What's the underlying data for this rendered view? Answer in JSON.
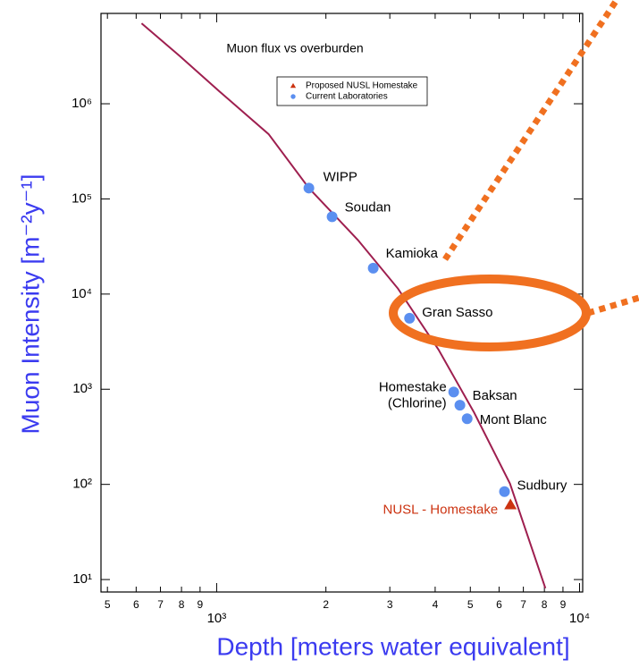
{
  "chart_data": {
    "type": "line",
    "title": "Muon flux vs overburden",
    "x_label": "Depth [meters water equivalent]",
    "y_label": "Muon Intensity [m⁻²y⁻¹]",
    "log_x": true,
    "log_y": true,
    "xlim": [
      480,
      10200
    ],
    "ylim": [
      7.4,
      8900000
    ],
    "xticks": [
      {
        "value": 500,
        "label": "5"
      },
      {
        "value": 600,
        "label": "6"
      },
      {
        "value": 700,
        "label": "7"
      },
      {
        "value": 800,
        "label": "8"
      },
      {
        "value": 900,
        "label": "9"
      },
      {
        "value": 1000,
        "label": "10³"
      },
      {
        "value": 2000,
        "label": "2"
      },
      {
        "value": 3000,
        "label": "3"
      },
      {
        "value": 4000,
        "label": "4"
      },
      {
        "value": 5000,
        "label": "5"
      },
      {
        "value": 6000,
        "label": "6"
      },
      {
        "value": 7000,
        "label": "7"
      },
      {
        "value": 8000,
        "label": "8"
      },
      {
        "value": 9000,
        "label": "9"
      },
      {
        "value": 10000,
        "label": "10⁴"
      }
    ],
    "yticks": [
      {
        "value": 10,
        "label": "10¹"
      },
      {
        "value": 100,
        "label": "10²"
      },
      {
        "value": 1000,
        "label": "10³"
      },
      {
        "value": 10000,
        "label": "10⁴"
      },
      {
        "value": 100000,
        "label": "10⁵"
      },
      {
        "value": 1000000,
        "label": "10⁶"
      }
    ],
    "legend": "top-center",
    "series": [
      {
        "color": "#9e1f4f",
        "kind": "line",
        "x": [
          621,
          789,
          1017,
          1390,
          1795,
          2450,
          3160,
          4085,
          5120,
          6430,
          8050
        ],
        "values": [
          7000000,
          3200000,
          1350000,
          480000,
          130000,
          37000,
          11400,
          2610,
          570,
          102,
          8.1
        ]
      },
      {
        "name": "Proposed NUSL Homestake",
        "color": "#cc3311",
        "kind": "triangle",
        "label_color": "#cc3311",
        "x": [
          6450
        ],
        "values": [
          61
        ],
        "labels": [
          "NUSL - Homestake"
        ]
      },
      {
        "name": "Current Laboratories",
        "color": "#5b8ff0",
        "kind": "circle",
        "label_color": "#000000",
        "x": [
          1795,
          2080,
          2700,
          3400,
          4500,
          4680,
          4900,
          6210
        ],
        "values": [
          130000,
          65000,
          18700,
          5570,
          935,
          680,
          490,
          84
        ],
        "labels": [
          "WIPP",
          "Soudan",
          "Kamioka",
          "Gran Sasso",
          "Homestake\n(Chlorine)",
          "Baksan",
          "Mont Blanc",
          "Sudbury"
        ]
      }
    ]
  }
}
